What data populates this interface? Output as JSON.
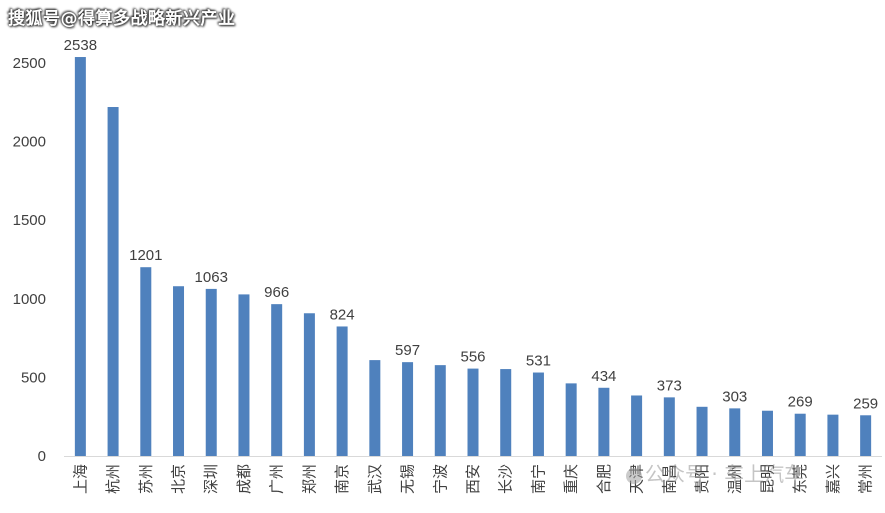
{
  "watermark": "搜狐号@得算多战略新兴产业",
  "watermark2": "公众号 · 车上汽车",
  "colors": {
    "bar": "#4F81BD",
    "axis": "#d9d9d9",
    "text": "#404040"
  },
  "chart_data": {
    "type": "bar",
    "title": "",
    "xlabel": "",
    "ylabel": "",
    "ylim": [
      0,
      2500
    ],
    "yticks": [
      0,
      500,
      1000,
      1500,
      2000,
      2500
    ],
    "grid": false,
    "categories": [
      "上海",
      "杭州",
      "苏州",
      "北京",
      "深圳",
      "成都",
      "广州",
      "郑州",
      "南京",
      "武汉",
      "无锡",
      "宁波",
      "西安",
      "长沙",
      "南宁",
      "重庆",
      "合肥",
      "天津",
      "南昌",
      "贵阳",
      "温州",
      "昆明",
      "东莞",
      "嘉兴",
      "常州"
    ],
    "values": [
      2538,
      2220,
      1201,
      1080,
      1063,
      1028,
      966,
      908,
      824,
      610,
      597,
      578,
      556,
      553,
      531,
      462,
      434,
      385,
      373,
      313,
      303,
      288,
      269,
      263,
      259
    ],
    "data_labels": {
      "上海": "2538",
      "苏州": "1201",
      "深圳": "1063",
      "广州": "966",
      "南京": "824",
      "无锡": "597",
      "西安": "556",
      "南宁": "531",
      "合肥": "434",
      "南昌": "373",
      "温州": "303",
      "东莞": "269",
      "常州": "259"
    }
  }
}
